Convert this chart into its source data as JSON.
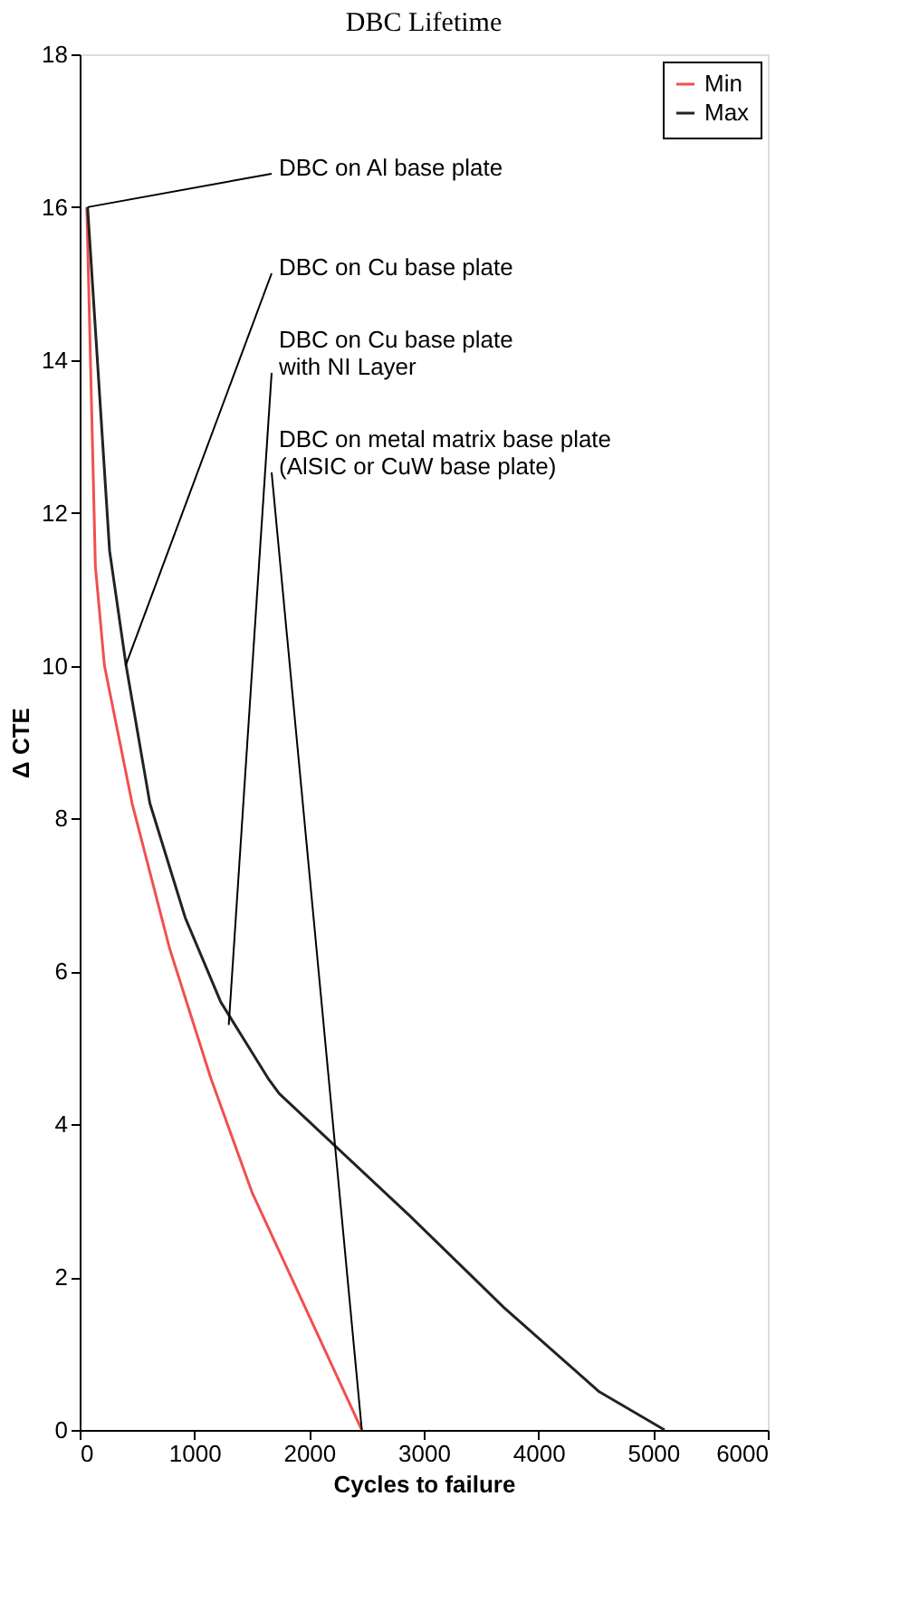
{
  "chart_data": {
    "type": "line",
    "title": "DBC Lifetime",
    "xlabel": "Cycles to failure",
    "ylabel": "Δ CTE",
    "x": [
      69,
      261,
      405,
      612,
      921,
      1230,
      1643,
      1740,
      2880,
      3700,
      4530,
      5100
    ],
    "series": [
      {
        "name": "Min",
        "color": "#f05050",
        "x": [
          62,
          137,
          216,
          457,
          784,
          1144,
          1505,
          2460
        ],
        "values": [
          16,
          11.3,
          10,
          8.2,
          6.3,
          4.6,
          3.1,
          0
        ]
      },
      {
        "name": "Max",
        "color": "#222222",
        "values": [
          16,
          11.5,
          10,
          8.2,
          6.7,
          5.6,
          4.6,
          4.4,
          2.8,
          1.6,
          0.5,
          0
        ]
      }
    ],
    "xlim": [
      0,
      6000
    ],
    "xticks": [
      0,
      1000,
      2000,
      3000,
      4000,
      5000,
      6000
    ],
    "ylim": [
      0,
      18
    ],
    "yticks": [
      0,
      2,
      4,
      6,
      8,
      10,
      12,
      14,
      16,
      18
    ],
    "grid": false,
    "legend": "top right",
    "marker": "none",
    "line_style": "solid",
    "annotations": [
      {
        "text": "DBC on Al base plate",
        "x": 69,
        "y": 16
      },
      {
        "text": "DBC on Cu base plate",
        "x": 400,
        "y": 10
      },
      {
        "text": "DBC on Cu base plate\nwith NI Layer",
        "x": 1300,
        "y": 5.3
      },
      {
        "text": "DBC on metal matrix base plate\n(AlSIC or CuW base plate)",
        "x": 2460,
        "y": 0
      }
    ]
  }
}
